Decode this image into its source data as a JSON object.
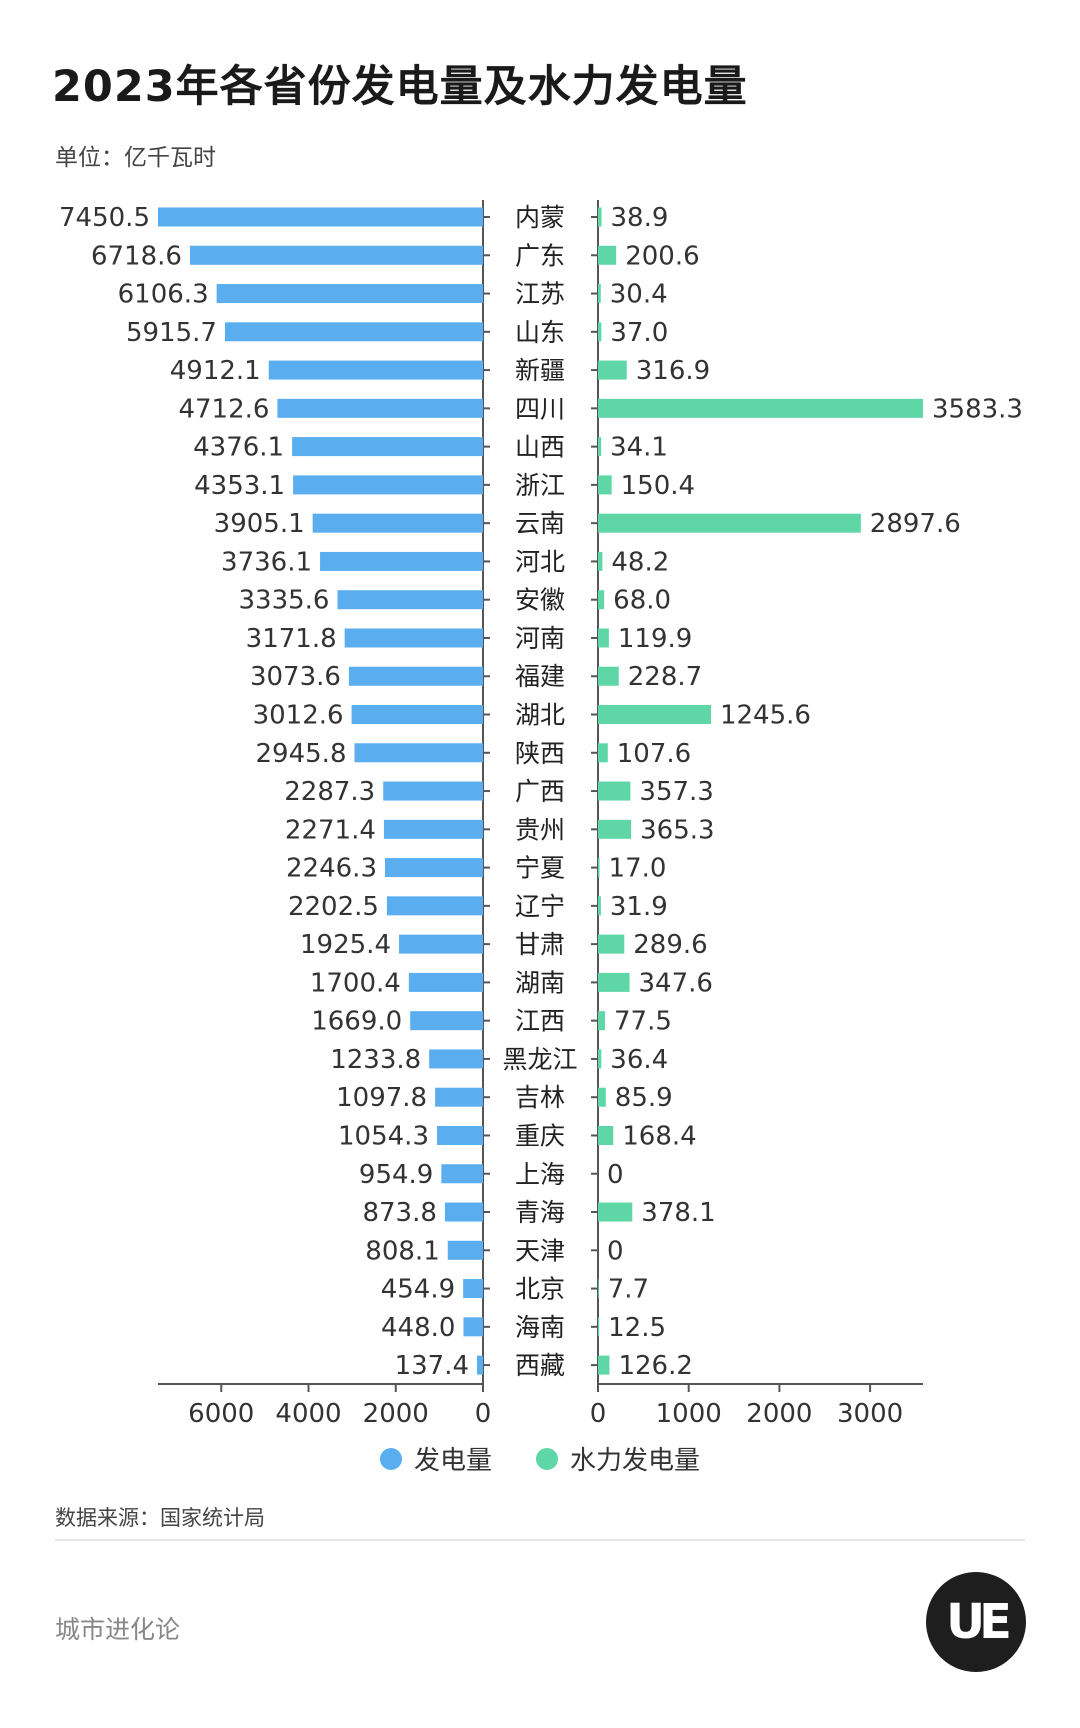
{
  "header": {
    "title": "2023年各省份发电量及水力发电量",
    "unit": "单位：亿千瓦时"
  },
  "footer": {
    "source": "数据来源：国家统计局",
    "brand": "城市进化论",
    "logo_text": "UE"
  },
  "colors": {
    "power": "#5AAEF0",
    "hydro": "#5ED6A6",
    "axis": "#555555"
  },
  "chart_data": {
    "type": "bar",
    "title": "2023年各省份发电量及水力发电量",
    "unit": "单位：亿千瓦时",
    "categories": [
      "内蒙",
      "广东",
      "江苏",
      "山东",
      "新疆",
      "四川",
      "山西",
      "浙江",
      "云南",
      "河北",
      "安徽",
      "河南",
      "福建",
      "湖北",
      "陕西",
      "广西",
      "贵州",
      "宁夏",
      "辽宁",
      "甘肃",
      "湖南",
      "江西",
      "黑龙江",
      "吉林",
      "重庆",
      "上海",
      "青海",
      "天津",
      "北京",
      "海南",
      "西藏"
    ],
    "series": [
      {
        "name": "发电量",
        "values": [
          7450.5,
          6718.6,
          6106.3,
          5915.7,
          4912.1,
          4712.6,
          4376.1,
          4353.1,
          3905.1,
          3736.1,
          3335.6,
          3171.8,
          3073.6,
          3012.6,
          2945.8,
          2287.3,
          2271.4,
          2246.3,
          2202.5,
          1925.4,
          1700.4,
          1669.0,
          1233.8,
          1097.8,
          1054.3,
          954.9,
          873.8,
          808.1,
          454.9,
          448.0,
          137.4
        ],
        "labels": [
          "7450.5",
          "6718.6",
          "6106.3",
          "5915.7",
          "4912.1",
          "4712.6",
          "4376.1",
          "4353.1",
          "3905.1",
          "3736.1",
          "3335.6",
          "3171.8",
          "3073.6",
          "3012.6",
          "2945.8",
          "2287.3",
          "2271.4",
          "2246.3",
          "2202.5",
          "1925.4",
          "1700.4",
          "1669.0",
          "1233.8",
          "1097.8",
          "1054.3",
          "954.9",
          "873.8",
          "808.1",
          "454.9",
          "448.0",
          "137.4"
        ]
      },
      {
        "name": "水力发电量",
        "values": [
          38.9,
          200.6,
          30.4,
          37.0,
          316.9,
          3583.3,
          34.1,
          150.4,
          2897.6,
          48.2,
          68.0,
          119.9,
          228.7,
          1245.6,
          107.6,
          357.3,
          365.3,
          17.0,
          31.9,
          289.6,
          347.6,
          77.5,
          36.4,
          85.9,
          168.4,
          0,
          378.1,
          0,
          7.7,
          12.5,
          126.2
        ],
        "labels": [
          "38.9",
          "200.6",
          "30.4",
          "37.0",
          "316.9",
          "3583.3",
          "34.1",
          "150.4",
          "2897.6",
          "48.2",
          "68.0",
          "119.9",
          "228.7",
          "1245.6",
          "107.6",
          "357.3",
          "365.3",
          "17.0",
          "31.9",
          "289.6",
          "347.6",
          "77.5",
          "36.4",
          "85.9",
          "168.4",
          "0",
          "378.1",
          "0",
          "7.7",
          "12.5",
          "126.2"
        ]
      }
    ],
    "left_axis": {
      "range": [
        0,
        7450.5
      ],
      "ticks": [
        6000,
        4000,
        2000,
        0
      ],
      "tick_labels": [
        "6000",
        "4000",
        "2000",
        "0"
      ]
    },
    "right_axis": {
      "range": [
        0,
        3583.3
      ],
      "ticks": [
        0,
        1000,
        2000,
        3000
      ],
      "tick_labels": [
        "0",
        "1000",
        "2000",
        "3000"
      ]
    },
    "legend": [
      {
        "name": "发电量",
        "color": "#5AAEF0"
      },
      {
        "name": "水力发电量",
        "color": "#5ED6A6"
      }
    ],
    "legend_position": "bottom",
    "grid": false
  }
}
